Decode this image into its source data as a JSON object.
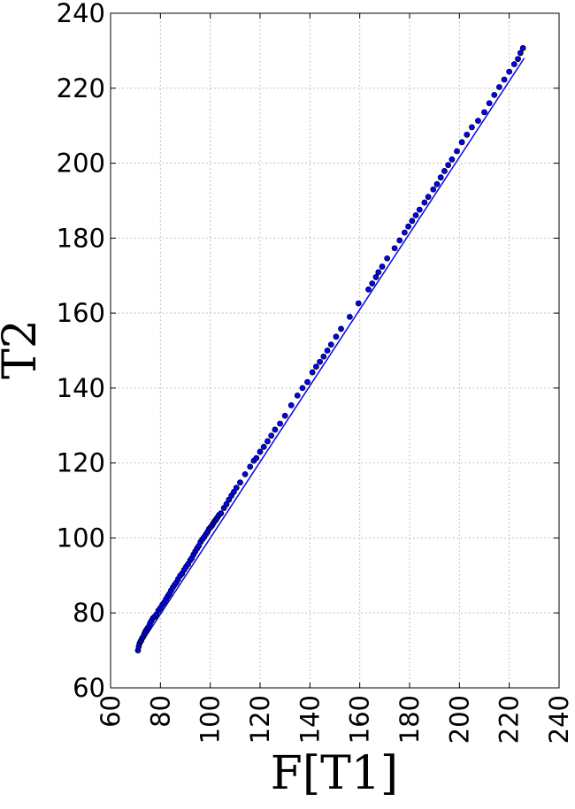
{
  "chart_data": {
    "type": "scatter",
    "title": "",
    "xlabel": "F[T1]",
    "ylabel": "T2",
    "xlim": [
      60,
      240
    ],
    "ylim": [
      60,
      240
    ],
    "xticks": [
      "60",
      "80",
      "100",
      "120",
      "140",
      "160",
      "180",
      "200",
      "220",
      "240"
    ],
    "yticks": [
      "60",
      "80",
      "100",
      "120",
      "140",
      "160",
      "180",
      "200",
      "220",
      "240"
    ],
    "grid": true,
    "x_tick_rotation": "vertical",
    "colors": {
      "marker": "#0000ff",
      "line": "#0000ff",
      "grid": "#b0b0b0",
      "frame": "#000000"
    },
    "series": [
      {
        "kind": "fit-line",
        "x": [
          71,
          226
        ],
        "y": [
          70.5,
          228
        ]
      },
      {
        "kind": "points",
        "x": [
          71.0,
          71.3,
          71.6,
          72.0,
          72.3,
          72.7,
          73.1,
          73.5,
          73.9,
          74.3,
          74.8,
          75.3,
          75.8,
          76.4,
          77.0,
          77.7,
          78.4,
          79.2,
          80.0,
          80.8,
          81.5,
          82.2,
          82.9,
          83.6,
          84.3,
          85.0,
          85.7,
          86.4,
          87.1,
          87.9,
          88.7,
          89.5,
          90.3,
          91.1,
          91.9,
          92.6,
          93.3,
          94.0,
          94.7,
          95.4,
          96.1,
          96.8,
          97.5,
          98.2,
          98.9,
          99.5,
          100.2,
          100.8,
          101.3,
          101.8,
          102.3,
          102.8,
          103.5,
          104.3,
          105.5,
          106.5,
          107.5,
          108.5,
          109.5,
          110.5,
          112.0,
          114.0,
          116.0,
          117.5,
          118.5,
          120.0,
          121.5,
          123.0,
          124.5,
          126.0,
          128.0,
          130.0,
          132.5,
          135.0,
          137.0,
          139.0,
          141.0,
          142.5,
          144.0,
          145.5,
          147.0,
          148.5,
          150.5,
          152.5,
          156.0,
          159.5,
          163.5,
          165.0,
          166.5,
          167.5,
          169.0,
          171.0,
          174.0,
          176.0,
          178.0,
          179.5,
          181.0,
          182.5,
          184.0,
          186.0,
          187.5,
          189.5,
          191.0,
          192.5,
          194.0,
          195.5,
          197.0,
          199.0,
          201.0,
          203.0,
          205.0,
          207.5,
          210.0,
          212.0,
          214.0,
          216.0,
          218.0,
          220.0,
          222.0,
          223.5,
          224.5,
          225.5
        ],
        "y": [
          70.0,
          71.0,
          71.8,
          72.4,
          72.6,
          73.3,
          73.6,
          74.3,
          74.9,
          75.4,
          75.9,
          76.3,
          77.2,
          77.9,
          78.6,
          79.0,
          79.6,
          80.6,
          81.3,
          82.2,
          82.8,
          83.6,
          84.4,
          85.1,
          86.0,
          86.8,
          87.5,
          88.1,
          89.0,
          89.9,
          90.5,
          91.5,
          92.3,
          93.0,
          94.0,
          94.6,
          95.6,
          96.4,
          97.2,
          97.9,
          98.9,
          99.6,
          100.2,
          100.9,
          101.6,
          102.4,
          102.9,
          103.4,
          104.0,
          104.5,
          104.9,
          105.4,
          106.1,
          106.6,
          108.0,
          109.0,
          110.2,
          111.3,
          112.3,
          113.4,
          114.8,
          117.0,
          119.0,
          120.6,
          121.3,
          123.0,
          124.3,
          125.8,
          127.3,
          128.9,
          130.5,
          132.6,
          135.4,
          138.0,
          140.0,
          141.6,
          144.2,
          145.7,
          147.0,
          148.4,
          150.0,
          151.6,
          153.7,
          155.8,
          159.0,
          162.6,
          166.3,
          167.9,
          169.6,
          170.9,
          172.4,
          174.6,
          177.3,
          179.4,
          181.5,
          183.1,
          184.6,
          186.1,
          187.6,
          189.5,
          191.0,
          193.0,
          194.4,
          196.2,
          197.9,
          199.5,
          201.0,
          203.2,
          205.6,
          207.6,
          209.6,
          211.3,
          213.6,
          216.0,
          218.2,
          220.3,
          222.3,
          224.4,
          226.4,
          227.8,
          229.4,
          230.7
        ]
      }
    ]
  }
}
